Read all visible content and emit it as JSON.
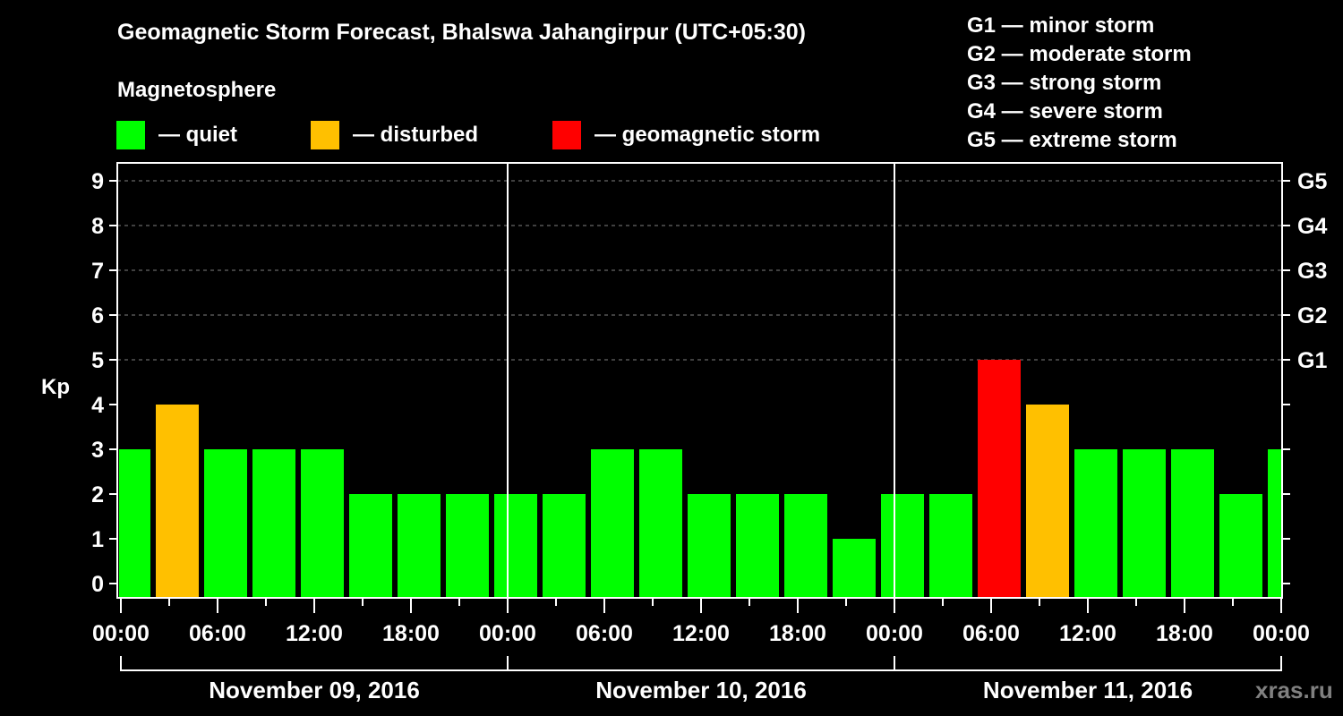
{
  "header": {
    "title": "Geomagnetic Storm Forecast, Bhalswa Jahangirpur (UTC+05:30)",
    "subtitle": "Magnetosphere"
  },
  "legend": [
    {
      "label": "— quiet",
      "color": "#00FF00"
    },
    {
      "label": "— disturbed",
      "color": "#FFC000"
    },
    {
      "label": "— geomagnetic storm",
      "color": "#FF0000"
    }
  ],
  "g_legend": [
    "G1 — minor storm",
    "G2 — moderate storm",
    "G3 — strong storm",
    "G4 — severe storm",
    "G5 — extreme storm"
  ],
  "watermark": "xras.ru",
  "colors": {
    "quiet": "#00FF00",
    "disturbed": "#FFC000",
    "storm": "#FF0000",
    "grid": "#808080",
    "axis": "#FFFFFF",
    "background": "#000000"
  },
  "chart_data": {
    "type": "bar",
    "title": "Geomagnetic Storm Forecast, Bhalswa Jahangirpur (UTC+05:30)",
    "xlabel": "",
    "ylabel": "Kp",
    "ylim": [
      0,
      9
    ],
    "yticks": [
      0,
      1,
      2,
      3,
      4,
      5,
      6,
      7,
      8,
      9
    ],
    "right_axis_labels": [
      {
        "kp": 5,
        "label": "G1"
      },
      {
        "kp": 6,
        "label": "G2"
      },
      {
        "kp": 7,
        "label": "G3"
      },
      {
        "kp": 8,
        "label": "G4"
      },
      {
        "kp": 9,
        "label": "G5"
      }
    ],
    "xtick_labels": [
      "00:00",
      "06:00",
      "12:00",
      "18:00",
      "00:00",
      "06:00",
      "12:00",
      "18:00",
      "00:00",
      "06:00",
      "12:00",
      "18:00",
      "00:00"
    ],
    "days": [
      "November 09, 2016",
      "November 10, 2016",
      "November 11, 2016"
    ],
    "bar_interval_hours": 3,
    "first_bar_start_hour": -0.83,
    "values": [
      3,
      4,
      3,
      3,
      3,
      2,
      2,
      2,
      2,
      2,
      3,
      3,
      2,
      2,
      2,
      1,
      2,
      2,
      5,
      4,
      3,
      3,
      3,
      2,
      3
    ],
    "categories_status": [
      "quiet",
      "disturbed",
      "quiet",
      "quiet",
      "quiet",
      "quiet",
      "quiet",
      "quiet",
      "quiet",
      "quiet",
      "quiet",
      "quiet",
      "quiet",
      "quiet",
      "quiet",
      "quiet",
      "quiet",
      "quiet",
      "storm",
      "disturbed",
      "quiet",
      "quiet",
      "quiet",
      "quiet",
      "quiet"
    ],
    "grid": {
      "horizontal_dashed_at": [
        5,
        6,
        7,
        8,
        9
      ]
    },
    "legend_position": "top"
  }
}
